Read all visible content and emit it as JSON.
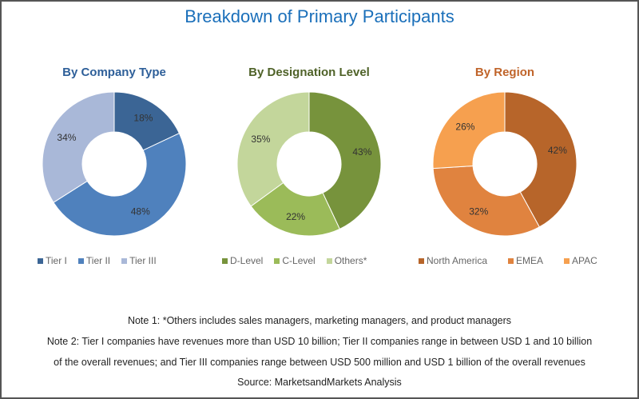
{
  "chart_data": [
    {
      "type": "pie",
      "title": "By Company Type",
      "title_color": "#2e5f99",
      "donut": true,
      "categories": [
        "Tier I",
        "Tier II",
        "Tier III"
      ],
      "values": [
        18,
        48,
        34
      ],
      "labels": [
        "18%",
        "48%",
        "34%"
      ],
      "colors": [
        "#3b6595",
        "#4f81bd",
        "#a9b8d8"
      ],
      "legend": "bottom"
    },
    {
      "type": "pie",
      "title": "By Designation Level",
      "title_color": "#4f6228",
      "donut": true,
      "categories": [
        "D-Level",
        "C-Level",
        "Others*"
      ],
      "values": [
        43,
        22,
        35
      ],
      "labels": [
        "43%",
        "22%",
        "35%"
      ],
      "colors": [
        "#77933c",
        "#9bbb59",
        "#c3d69b"
      ],
      "legend": "bottom"
    },
    {
      "type": "pie",
      "title": "By Region",
      "title_color": "#c0642a",
      "donut": true,
      "categories": [
        "North America",
        "EMEA",
        "APAC"
      ],
      "values": [
        42,
        32,
        26
      ],
      "labels": [
        "42%",
        "32%",
        "26%"
      ],
      "colors": [
        "#b7652a",
        "#e0833f",
        "#f6a04f"
      ],
      "legend": "bottom"
    }
  ],
  "title": "Breakdown of Primary Participants",
  "notes": [
    "Note 1: *Others includes sales managers, marketing managers, and product managers",
    "Note 2: Tier I companies have revenues more than USD 10 billion; Tier II companies range in between USD 1 and 10 billion",
    "of the overall revenues; and Tier III companies range between USD 500 million and USD 1 billion of the overall revenues",
    "Source: MarketsandMarkets Analysis"
  ]
}
